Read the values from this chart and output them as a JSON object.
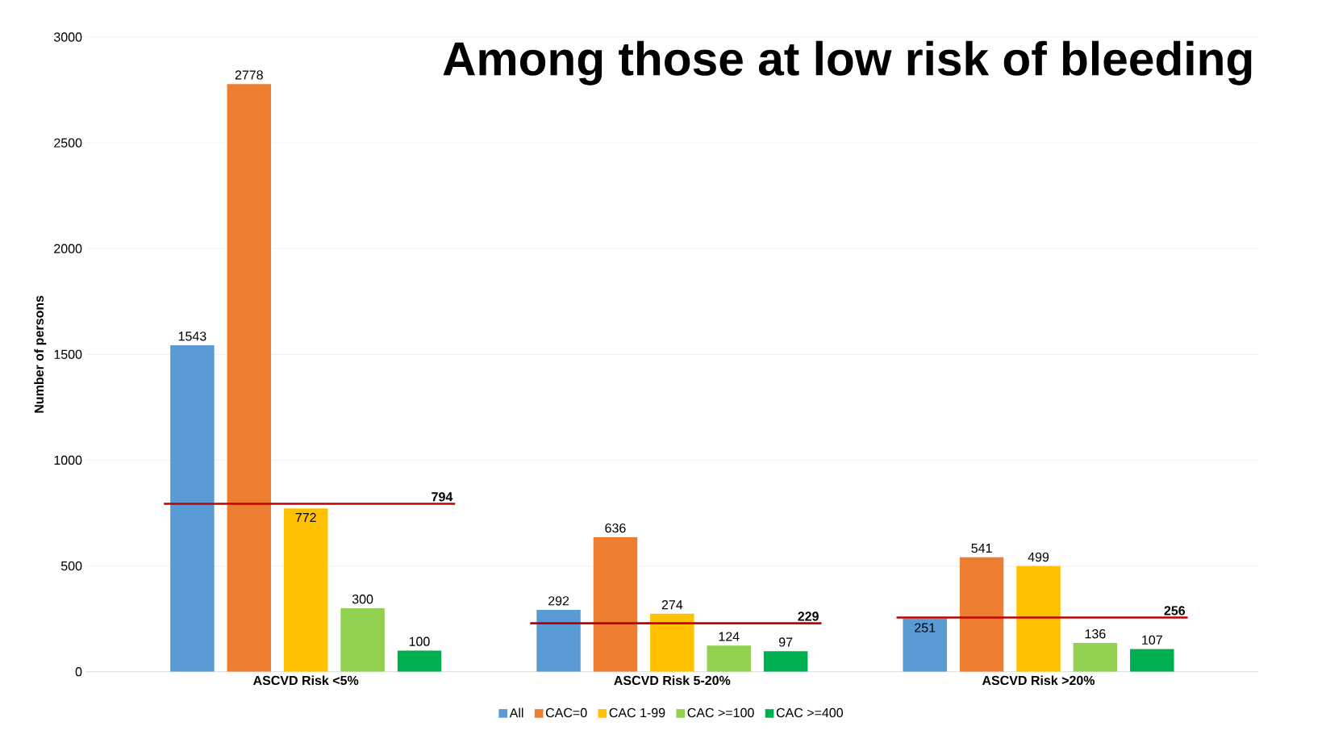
{
  "chart_data": {
    "type": "bar",
    "title": "Among those at low risk of bleeding",
    "ylabel": "Number of persons",
    "categories": [
      "ASCVD Risk <5%",
      "ASCVD Risk 5-20%",
      "ASCVD Risk >20%"
    ],
    "series": [
      {
        "name": "All",
        "color": "#5b9bd5",
        "values": [
          1543,
          292,
          251
        ]
      },
      {
        "name": "CAC=0",
        "color": "#ed7d31",
        "values": [
          2778,
          636,
          541
        ]
      },
      {
        "name": "CAC 1-99",
        "color": "#ffc000",
        "values": [
          772,
          274,
          499
        ]
      },
      {
        "name": "CAC >=100",
        "color": "#92d050",
        "values": [
          300,
          124,
          136
        ]
      },
      {
        "name": "CAC >=400",
        "color": "#00b050",
        "values": [
          100,
          97,
          107
        ]
      }
    ],
    "ref_lines": [
      {
        "axis": "y",
        "value": 794,
        "label": "794",
        "color": "#c00000"
      },
      {
        "axis": "y",
        "value": 229,
        "label": "229",
        "color": "#c00000"
      },
      {
        "axis": "y",
        "value": 256,
        "label": "256",
        "color": "#c00000"
      }
    ],
    "ylim": [
      0,
      3000
    ],
    "yticks": [
      0,
      500,
      1000,
      1500,
      2000,
      2500,
      3000
    ],
    "grid": "y",
    "legend": "bottom",
    "data_labels": true
  }
}
